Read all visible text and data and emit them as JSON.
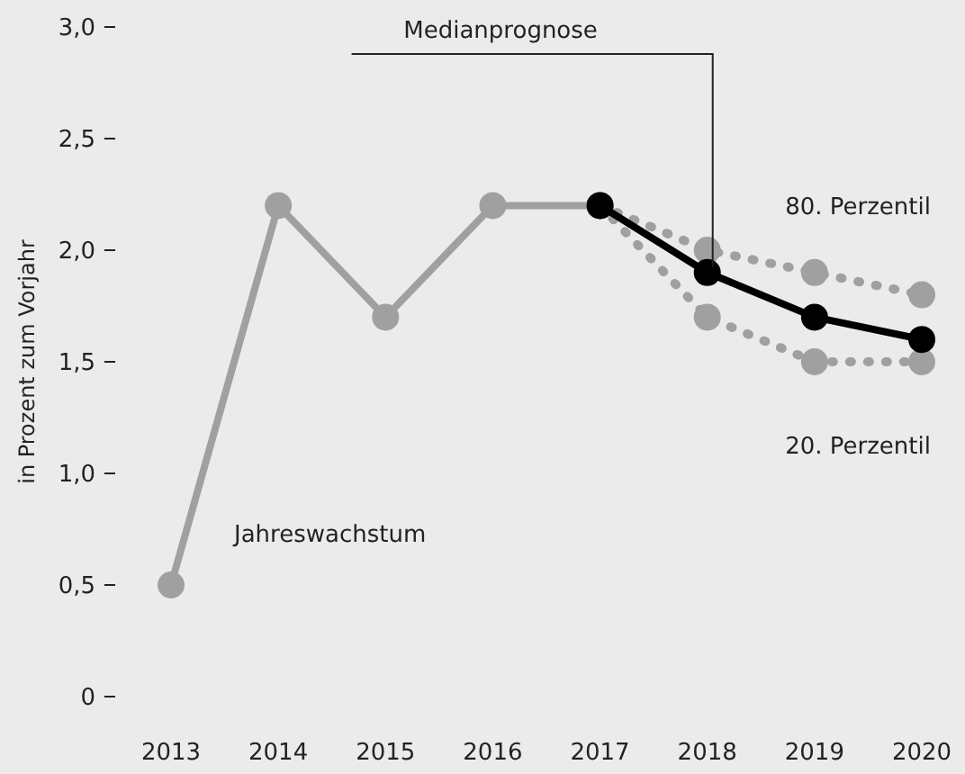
{
  "chart_data": {
    "type": "line",
    "ylabel": "in Prozent zum Vorjahr",
    "x": [
      2013,
      2014,
      2015,
      2016,
      2017,
      2018,
      2019,
      2020
    ],
    "xlim": [
      2013,
      2020
    ],
    "xticks": [
      {
        "value": 2013,
        "label": "2013"
      },
      {
        "value": 2014,
        "label": "2014"
      },
      {
        "value": 2015,
        "label": "2015"
      },
      {
        "value": 2016,
        "label": "2016"
      },
      {
        "value": 2017,
        "label": "2017"
      },
      {
        "value": 2018,
        "label": "2018"
      },
      {
        "value": 2019,
        "label": "2019"
      },
      {
        "value": 2020,
        "label": "2020"
      }
    ],
    "ylim": [
      0,
      3
    ],
    "yticks": [
      {
        "value": 0,
        "label": "0"
      },
      {
        "value": 0.5,
        "label": "0,5"
      },
      {
        "value": 1,
        "label": "1,0"
      },
      {
        "value": 1.5,
        "label": "1,5"
      },
      {
        "value": 2,
        "label": "2,0"
      },
      {
        "value": 2.5,
        "label": "2,5"
      },
      {
        "value": 3,
        "label": "3,0"
      }
    ],
    "grid": false,
    "marker": "circle",
    "series": [
      {
        "name": "Jahreswachstum",
        "color": "#a0a0a0",
        "line_style": "solid",
        "values": [
          0.5,
          2.2,
          1.7,
          2.2,
          2.2,
          null,
          null,
          null
        ]
      },
      {
        "name": "80. Perzentil",
        "color": "#a0a0a0",
        "line_style": "dotted",
        "values": [
          null,
          null,
          null,
          null,
          2.2,
          2.0,
          1.9,
          1.8
        ]
      },
      {
        "name": "20. Perzentil",
        "color": "#a0a0a0",
        "line_style": "dotted",
        "values": [
          null,
          null,
          null,
          null,
          2.2,
          1.7,
          1.5,
          1.5
        ]
      },
      {
        "name": "Medianprognose",
        "color": "#000000",
        "line_style": "solid",
        "values": [
          null,
          null,
          null,
          null,
          2.2,
          1.9,
          1.7,
          1.6
        ]
      }
    ]
  }
}
